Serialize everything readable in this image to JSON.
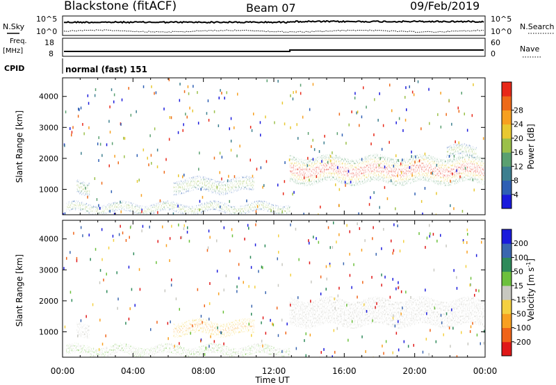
{
  "header": {
    "station": "Blackstone (fitACF)",
    "beam": "Beam 07",
    "date": "09/Feb/2019"
  },
  "panels": {
    "nsky": {
      "left_label": "N.Sky",
      "right_label": "N.Search",
      "left_ticks": [
        "10^5",
        "10^0"
      ],
      "right_ticks": [
        "10^5",
        "10^0"
      ]
    },
    "freq": {
      "left_label_line1": "Freq.",
      "left_label_line2": "[MHz]",
      "right_label": "Nave",
      "left_ticks": [
        "18",
        "8"
      ],
      "right_ticks": [
        "60",
        "0"
      ]
    },
    "cpid": {
      "label": "CPID",
      "value": "normal (fast) 151"
    }
  },
  "chart_data": [
    {
      "type": "heatmap",
      "name": "power",
      "ylabel": "Slant Range [km]",
      "yticks": [
        "1000",
        "2000",
        "3000",
        "4000"
      ],
      "ylim": [
        180,
        4600
      ],
      "colorbar": {
        "label": "Power [dB]",
        "ticks": [
          "4",
          "8",
          "12",
          "16",
          "20",
          "24",
          "28"
        ],
        "colors": [
          "#1a1adc",
          "#2e5fb4",
          "#3d7f8f",
          "#5aa070",
          "#9bc04a",
          "#e8c830",
          "#f7a020",
          "#ee6a18",
          "#e82818"
        ]
      },
      "echo_regions": [
        {
          "t_start": 0.2,
          "t_end": 12.8,
          "range_min": 200,
          "range_max": 550,
          "level": "weak-to-moderate"
        },
        {
          "t_start": 0.8,
          "t_end": 1.5,
          "range_min": 800,
          "range_max": 1300,
          "level": "moderate"
        },
        {
          "t_start": 6.3,
          "t_end": 10.8,
          "range_min": 850,
          "range_max": 1350,
          "level": "moderate"
        },
        {
          "t_start": 12.9,
          "t_end": 23.9,
          "range_min": 1100,
          "range_max": 2050,
          "level": "strong band 16–28 dB"
        },
        {
          "t_start": 21.8,
          "t_end": 23.4,
          "range_min": 2000,
          "range_max": 2400,
          "level": "weak-to-moderate"
        }
      ]
    },
    {
      "type": "heatmap",
      "name": "velocity",
      "ylabel": "Slant Range [km]",
      "yticks": [
        "1000",
        "2000",
        "3000",
        "4000"
      ],
      "ylim": [
        180,
        4600
      ],
      "colorbar": {
        "label_main": "Velocity [m s",
        "label_sup": "-1",
        "label_end": "]",
        "ticks": [
          "200",
          "100",
          "50",
          "15",
          "-15",
          "-50",
          "-100",
          "-200"
        ],
        "colors": [
          "#1a1adc",
          "#3a66b0",
          "#2e8a5a",
          "#6cc03c",
          "#c8c8c0",
          "#f4d040",
          "#f8a020",
          "#f06418",
          "#e01818"
        ]
      },
      "echo_regions": [
        {
          "t_start": 0.2,
          "t_end": 12.8,
          "range_min": 200,
          "range_max": 550,
          "level": "green/grey mixed"
        },
        {
          "t_start": 0.8,
          "t_end": 1.5,
          "range_min": 800,
          "range_max": 1300,
          "level": "grey"
        },
        {
          "t_start": 6.3,
          "t_end": 10.8,
          "range_min": 850,
          "range_max": 1350,
          "level": "orange −15 to −50"
        },
        {
          "t_start": 12.9,
          "t_end": 23.9,
          "range_min": 1100,
          "range_max": 2050,
          "level": "grey ±15"
        }
      ]
    }
  ],
  "x_axis": {
    "label": "Time UT",
    "ticks": [
      "00:00",
      "04:00",
      "08:00",
      "12:00",
      "16:00",
      "20:00",
      "00:00"
    ],
    "range_hours": [
      0,
      24
    ]
  }
}
